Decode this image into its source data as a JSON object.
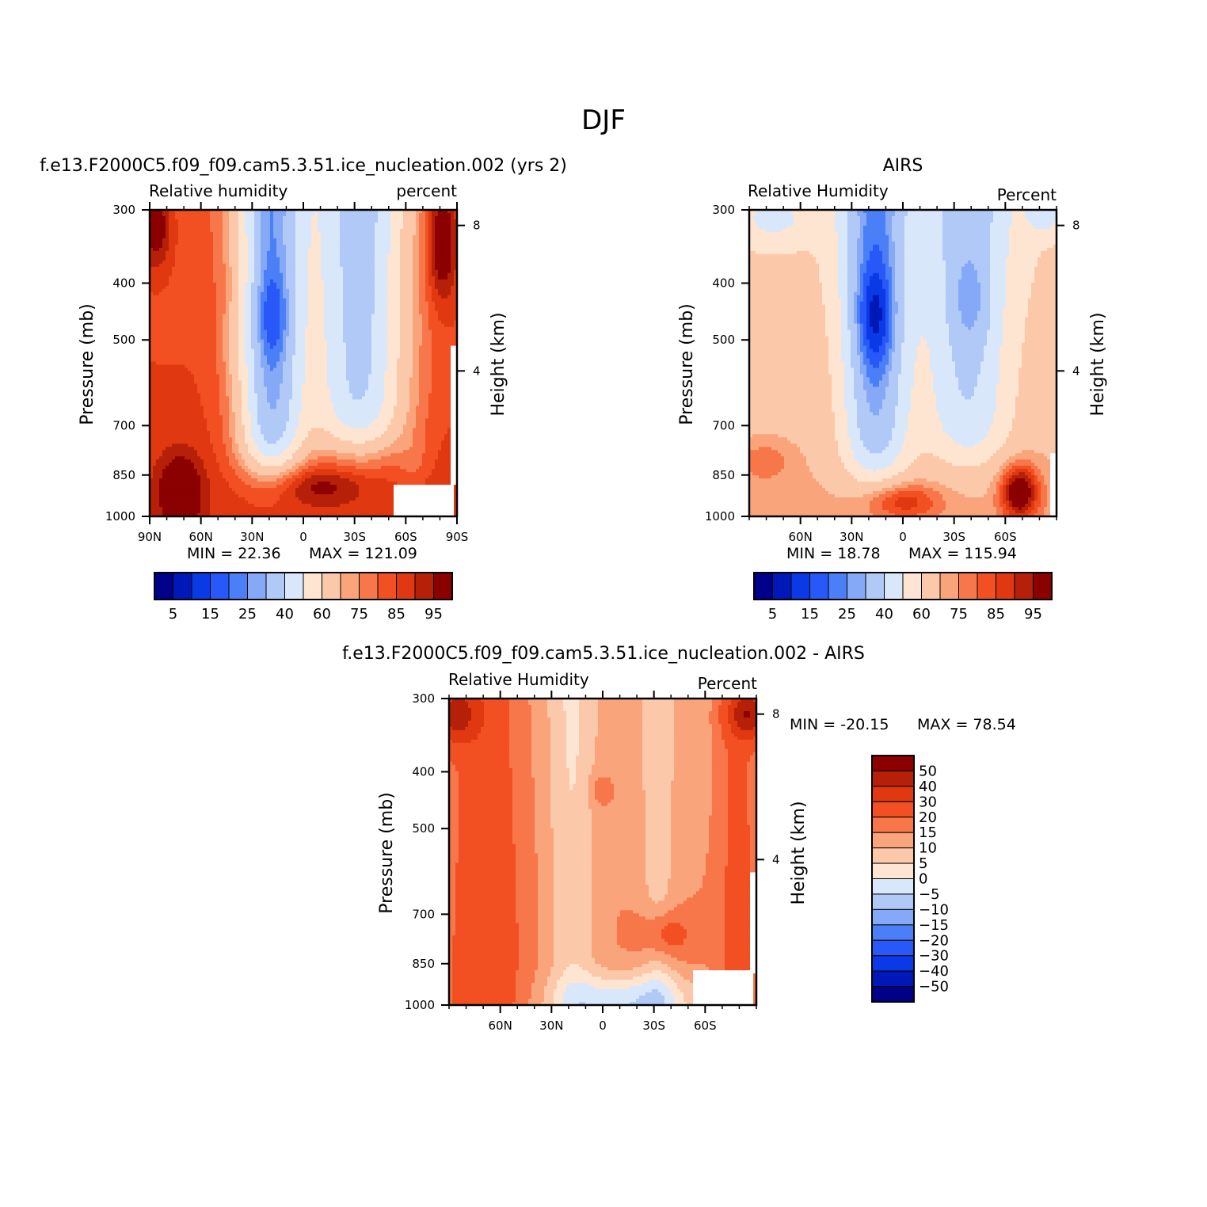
{
  "figure": {
    "title": "DJF"
  },
  "chart_data": [
    {
      "type": "heatmap",
      "id": "model",
      "title": "f.e13.F2000C5.f09_f09.cam5.3.51.ice_nucleation.002 (yrs 2)",
      "left_label": "Relative humidity",
      "right_label": "percent",
      "ylabel": "Pressure (mb)",
      "y2label": "Height (km)",
      "x_ticks": [
        "90N",
        "60N",
        "30N",
        "0",
        "30S",
        "60S",
        "90S"
      ],
      "x_tick_values": [
        90,
        60,
        30,
        0,
        -30,
        -60,
        -90
      ],
      "xlim": [
        90,
        -90
      ],
      "y_ticks": [
        "300",
        "400",
        "500",
        "700",
        "850",
        "1000"
      ],
      "y_tick_values": [
        300,
        400,
        500,
        700,
        850,
        1000
      ],
      "ylim": [
        300,
        1000
      ],
      "y2_ticks": [
        "8",
        "4"
      ],
      "y2_tick_values": [
        8,
        4
      ],
      "min_label": "MIN =   22.36",
      "max_label": "MAX = 121.09",
      "min": 22.36,
      "max": 121.09,
      "levels": [
        5,
        10,
        15,
        20,
        25,
        30,
        40,
        50,
        60,
        70,
        75,
        80,
        85,
        90,
        95
      ],
      "colorbar_labels": [
        "5",
        "15",
        "25",
        "40",
        "60",
        "75",
        "85",
        "95"
      ]
    },
    {
      "type": "heatmap",
      "id": "obs",
      "title": "AIRS",
      "left_label": "Relative Humidity",
      "right_label": "Percent",
      "ylabel": "Pressure (mb)",
      "y2label": "Height (km)",
      "x_ticks": [
        "60N",
        "30N",
        "0",
        "30S",
        "60S"
      ],
      "x_tick_values": [
        60,
        30,
        0,
        -30,
        -60
      ],
      "xlim": [
        90,
        -90
      ],
      "y_ticks": [
        "300",
        "400",
        "500",
        "700",
        "850",
        "1000"
      ],
      "y_tick_values": [
        300,
        400,
        500,
        700,
        850,
        1000
      ],
      "ylim": [
        300,
        1000
      ],
      "y2_ticks": [
        "8",
        "4"
      ],
      "y2_tick_values": [
        8,
        4
      ],
      "min_label": "MIN =   18.78",
      "max_label": "MAX = 115.94",
      "min": 18.78,
      "max": 115.94,
      "levels": [
        5,
        10,
        15,
        20,
        25,
        30,
        40,
        50,
        60,
        70,
        75,
        80,
        85,
        90,
        95
      ],
      "colorbar_labels": [
        "5",
        "15",
        "25",
        "40",
        "60",
        "75",
        "85",
        "95"
      ]
    },
    {
      "type": "heatmap",
      "id": "diff",
      "title": "f.e13.F2000C5.f09_f09.cam5.3.51.ice_nucleation.002 - AIRS",
      "left_label": "Relative Humidity",
      "right_label": "Percent",
      "ylabel": "Pressure (mb)",
      "y2label": "Height (km)",
      "x_ticks": [
        "60N",
        "30N",
        "0",
        "30S",
        "60S"
      ],
      "x_tick_values": [
        60,
        30,
        0,
        -30,
        -60
      ],
      "xlim": [
        90,
        -90
      ],
      "y_ticks": [
        "300",
        "400",
        "500",
        "700",
        "850",
        "1000"
      ],
      "y_tick_values": [
        300,
        400,
        500,
        700,
        850,
        1000
      ],
      "ylim": [
        300,
        1000
      ],
      "y2_ticks": [
        "8",
        "4"
      ],
      "y2_tick_values": [
        8,
        4
      ],
      "min_label": "MIN = -20.15",
      "max_label": "MAX =   78.54",
      "min": -20.15,
      "max": 78.54,
      "levels": [
        -50,
        -40,
        -30,
        -20,
        -15,
        -10,
        -5,
        0,
        5,
        10,
        15,
        20,
        30,
        40,
        50
      ],
      "colorbar_labels": [
        "50",
        "40",
        "30",
        "20",
        "15",
        "10",
        "5",
        "0",
        "-5",
        "-10",
        "-15",
        "-20",
        "-30",
        "-40",
        "-50"
      ]
    }
  ],
  "colors": {
    "palette": [
      "#00008a",
      "#0018b8",
      "#0a3ae6",
      "#2858f7",
      "#4a7ff7",
      "#86a9f7",
      "#b1c9f7",
      "#d9e7fb",
      "#fde5d2",
      "#fcc8aa",
      "#f9a47a",
      "#f7774a",
      "#f25022",
      "#e03810",
      "#b72008",
      "#8b0000"
    ],
    "background": "#ffffff",
    "axis": "#000000",
    "missing": "#ffffff"
  }
}
